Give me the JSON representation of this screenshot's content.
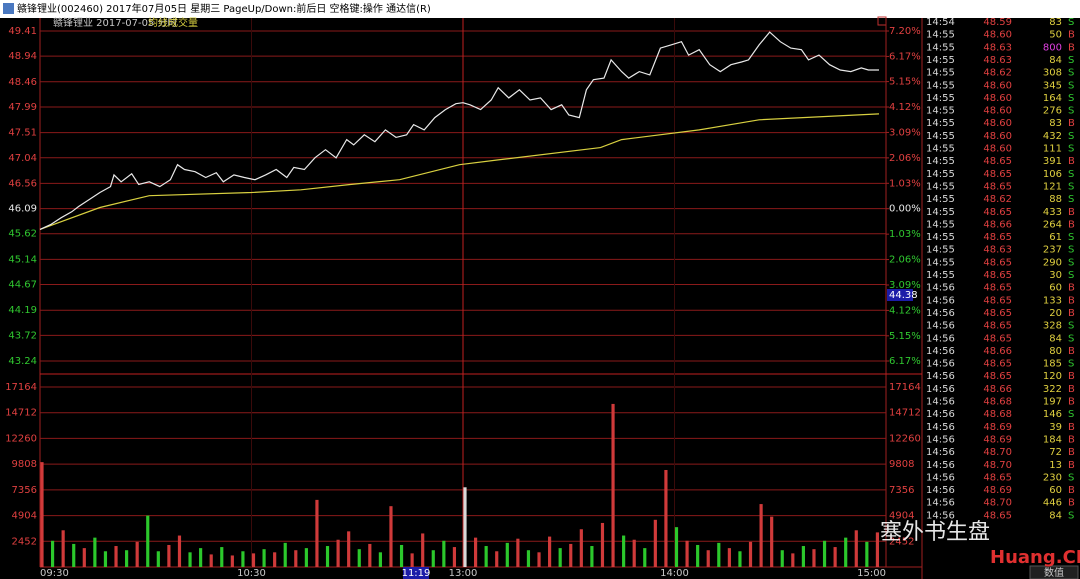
{
  "window_title": "赣锋锂业(002460) 2017年07月05日 星期三 PageUp/Down:前后日 空格键:操作 通达信(R)",
  "chart_data": {
    "type": "intraday",
    "title": "赣锋锂业 2017-07-05 分时",
    "xlim": [
      0,
      240
    ],
    "xticks": [
      {
        "value": 0,
        "label": "09:30"
      },
      {
        "value": 60,
        "label": "10:30"
      },
      {
        "value": 120,
        "label": "13:00"
      },
      {
        "value": 180,
        "label": "14:00"
      },
      {
        "value": 240,
        "label": "15:00"
      }
    ],
    "ylim": [
      43.24,
      49.41
    ],
    "yticks": [
      49.41,
      48.94,
      48.46,
      47.99,
      47.51,
      47.04,
      46.56,
      46.09,
      45.62,
      45.14,
      44.67,
      44.19,
      43.72,
      43.24
    ],
    "y2lim": [
      -6.17,
      7.2
    ],
    "y2ticks": [
      {
        "value": 7.2,
        "label": "7.20%"
      },
      {
        "value": 6.17,
        "label": "6.17%"
      },
      {
        "value": 5.15,
        "label": "5.15%"
      },
      {
        "value": 4.12,
        "label": "4.12%"
      },
      {
        "value": 3.09,
        "label": "3.09%"
      },
      {
        "value": 2.06,
        "label": "2.06%"
      },
      {
        "value": 1.03,
        "label": "1.03%"
      },
      {
        "value": 0,
        "label": "0.00%"
      },
      {
        "value": -1.03,
        "label": "1.03%"
      },
      {
        "value": -2.06,
        "label": "2.06%"
      },
      {
        "value": -3.09,
        "label": "3.09%"
      },
      {
        "value": -4.12,
        "label": "4.12%"
      },
      {
        "value": -5.15,
        "label": "5.15%"
      },
      {
        "value": -6.17,
        "label": "6.17%"
      }
    ],
    "grid": true,
    "price": {
      "color": "#e8e8e8",
      "x": [
        0,
        3,
        6,
        9,
        11,
        14,
        17,
        20,
        21,
        23,
        26,
        28,
        31,
        34,
        37,
        39,
        41,
        44,
        47,
        50,
        52,
        55,
        58,
        61,
        64,
        67,
        70,
        72,
        75,
        78,
        81,
        84,
        87,
        89,
        92,
        95,
        98,
        101,
        104,
        106,
        109,
        112,
        115,
        118,
        120,
        122,
        125,
        128,
        130,
        133,
        136,
        139,
        142,
        145,
        148,
        150,
        153,
        155,
        157,
        160,
        162,
        165,
        167,
        170,
        173,
        176,
        179,
        182,
        184,
        187,
        190,
        193,
        196,
        199,
        201,
        204,
        207,
        210,
        213,
        216,
        218,
        221,
        224,
        227,
        230,
        233,
        235,
        238
      ],
      "values": [
        45.7,
        45.79,
        45.92,
        46.03,
        46.13,
        46.26,
        46.39,
        46.5,
        46.72,
        46.59,
        46.74,
        46.54,
        46.59,
        46.5,
        46.63,
        46.91,
        46.82,
        46.78,
        46.67,
        46.76,
        46.59,
        46.72,
        46.67,
        46.63,
        46.72,
        46.82,
        46.67,
        46.86,
        46.82,
        47.04,
        47.19,
        47.04,
        47.38,
        47.28,
        47.47,
        47.34,
        47.56,
        47.42,
        47.47,
        47.66,
        47.56,
        47.79,
        47.94,
        48.05,
        48.07,
        48.03,
        47.94,
        48.12,
        48.35,
        48.16,
        48.31,
        48.12,
        48.16,
        47.94,
        48.03,
        47.84,
        47.79,
        48.31,
        48.5,
        48.53,
        48.87,
        48.65,
        48.53,
        48.65,
        48.59,
        49.09,
        49.15,
        49.21,
        48.96,
        49.06,
        48.78,
        48.65,
        48.78,
        48.83,
        48.87,
        49.15,
        49.39,
        49.21,
        49.09,
        49.06,
        48.87,
        48.96,
        48.78,
        48.68,
        48.65,
        48.72,
        48.68,
        48.68
      ]
    },
    "average": {
      "name": "均线",
      "color": "#d8d040",
      "x": [
        0,
        17,
        31,
        60,
        74,
        88,
        102,
        119,
        130,
        159,
        165,
        187,
        204,
        238
      ],
      "values": [
        45.7,
        46.11,
        46.33,
        46.39,
        46.44,
        46.54,
        46.63,
        46.91,
        47.0,
        47.23,
        47.38,
        47.56,
        47.75,
        47.86
      ]
    },
    "volume": {
      "name": "成交量",
      "ylim": [
        0,
        17164
      ],
      "yticks": [
        17164,
        14712,
        12260,
        9808,
        7356,
        4904,
        2452
      ],
      "x": [
        0,
        3,
        6,
        9,
        12,
        15,
        18,
        21,
        24,
        27,
        30,
        33,
        36,
        39,
        42,
        45,
        48,
        51,
        54,
        57,
        60,
        63,
        66,
        69,
        72,
        75,
        78,
        81,
        84,
        87,
        90,
        93,
        96,
        99,
        102,
        105,
        108,
        111,
        114,
        117,
        120,
        123,
        126,
        129,
        132,
        135,
        138,
        141,
        144,
        147,
        150,
        153,
        156,
        159,
        162,
        165,
        168,
        171,
        174,
        177,
        180,
        183,
        186,
        189,
        192,
        195,
        198,
        201,
        204,
        207,
        210,
        213,
        216,
        219,
        222,
        225,
        228,
        231,
        234,
        237
      ],
      "values": [
        10000,
        2500,
        3500,
        2200,
        1800,
        2800,
        1500,
        2000,
        1600,
        2400,
        4900,
        1500,
        2100,
        3000,
        1400,
        1800,
        1200,
        1900,
        1100,
        1500,
        1300,
        1700,
        1400,
        2300,
        1600,
        1800,
        6400,
        2000,
        2600,
        3400,
        1700,
        2200,
        1400,
        5800,
        2100,
        1300,
        3200,
        1600,
        2500,
        1900,
        7600,
        2800,
        2000,
        1500,
        2300,
        2700,
        1600,
        1400,
        2900,
        1800,
        2200,
        3600,
        2000,
        4200,
        15550,
        3000,
        2600,
        1800,
        4500,
        9250,
        3800,
        2500,
        2100,
        1600,
        2300,
        1800,
        1500,
        2400,
        6000,
        4800,
        1600,
        1300,
        2000,
        1700,
        2500,
        1900,
        2800,
        3500,
        2400,
        3300
      ],
      "colors": [
        "#d03a3a",
        "#2cc82c",
        "#d03a3a",
        "#2cc82c",
        "#d03a3a",
        "#2cc82c",
        "#2cc82c",
        "#d03a3a",
        "#2cc82c",
        "#d03a3a",
        "#2cc82c",
        "#2cc82c",
        "#d03a3a",
        "#d03a3a",
        "#2cc82c",
        "#2cc82c",
        "#d03a3a",
        "#2cc82c",
        "#d03a3a",
        "#2cc82c",
        "#d03a3a",
        "#2cc82c",
        "#d03a3a",
        "#2cc82c",
        "#d03a3a",
        "#2cc82c",
        "#d03a3a",
        "#2cc82c",
        "#d03a3a",
        "#d03a3a",
        "#2cc82c",
        "#d03a3a",
        "#2cc82c",
        "#d03a3a",
        "#2cc82c",
        "#d03a3a",
        "#d03a3a",
        "#2cc82c",
        "#2cc82c",
        "#d03a3a",
        "#d8d8d8",
        "#d03a3a",
        "#2cc82c",
        "#d03a3a",
        "#2cc82c",
        "#d03a3a",
        "#2cc82c",
        "#d03a3a",
        "#d03a3a",
        "#2cc82c",
        "#d03a3a",
        "#d03a3a",
        "#2cc82c",
        "#d03a3a",
        "#d03a3a",
        "#2cc82c",
        "#d03a3a",
        "#2cc82c",
        "#d03a3a",
        "#d03a3a",
        "#2cc82c",
        "#d03a3a",
        "#2cc82c",
        "#d03a3a",
        "#2cc82c",
        "#d03a3a",
        "#2cc82c",
        "#d03a3a",
        "#d03a3a",
        "#d03a3a",
        "#2cc82c",
        "#d03a3a",
        "#2cc82c",
        "#d03a3a",
        "#2cc82c",
        "#d03a3a",
        "#2cc82c",
        "#d03a3a",
        "#2cc82c",
        "#d03a3a"
      ]
    },
    "crosshair": {
      "x_label": "11:19",
      "y_label": "44.38"
    }
  },
  "ticks_table": {
    "rows": [
      [
        "14:54",
        "48.59",
        "83",
        "S"
      ],
      [
        "14:55",
        "48.60",
        "50",
        "B"
      ],
      [
        "14:55",
        "48.63",
        "800",
        "B"
      ],
      [
        "14:55",
        "48.63",
        "84",
        "S"
      ],
      [
        "14:55",
        "48.62",
        "308",
        "S"
      ],
      [
        "14:55",
        "48.60",
        "345",
        "S"
      ],
      [
        "14:55",
        "48.60",
        "164",
        "S"
      ],
      [
        "14:55",
        "48.60",
        "276",
        "S"
      ],
      [
        "14:55",
        "48.60",
        "83",
        "B"
      ],
      [
        "14:55",
        "48.60",
        "432",
        "S"
      ],
      [
        "14:55",
        "48.60",
        "111",
        "S"
      ],
      [
        "14:55",
        "48.65",
        "391",
        "B"
      ],
      [
        "14:55",
        "48.65",
        "106",
        "S"
      ],
      [
        "14:55",
        "48.65",
        "121",
        "S"
      ],
      [
        "14:55",
        "48.62",
        "88",
        "S"
      ],
      [
        "14:55",
        "48.65",
        "433",
        "B"
      ],
      [
        "14:55",
        "48.66",
        "264",
        "B"
      ],
      [
        "14:55",
        "48.65",
        "61",
        "S"
      ],
      [
        "14:55",
        "48.63",
        "237",
        "S"
      ],
      [
        "14:55",
        "48.65",
        "290",
        "S"
      ],
      [
        "14:55",
        "48.65",
        "30",
        "S"
      ],
      [
        "14:56",
        "48.65",
        "60",
        "B"
      ],
      [
        "14:56",
        "48.65",
        "133",
        "B"
      ],
      [
        "14:56",
        "48.65",
        "20",
        "B"
      ],
      [
        "14:56",
        "48.65",
        "328",
        "S"
      ],
      [
        "14:56",
        "48.65",
        "84",
        "S"
      ],
      [
        "14:56",
        "48.66",
        "80",
        "B"
      ],
      [
        "14:56",
        "48.65",
        "185",
        "S"
      ],
      [
        "14:56",
        "48.65",
        "120",
        "B"
      ],
      [
        "14:56",
        "48.66",
        "322",
        "B"
      ],
      [
        "14:56",
        "48.68",
        "197",
        "B"
      ],
      [
        "14:56",
        "48.68",
        "146",
        "S"
      ],
      [
        "14:56",
        "48.69",
        "39",
        "B"
      ],
      [
        "14:56",
        "48.69",
        "184",
        "B"
      ],
      [
        "14:56",
        "48.70",
        "72",
        "B"
      ],
      [
        "14:56",
        "48.70",
        "13",
        "B"
      ],
      [
        "14:56",
        "48.65",
        "230",
        "S"
      ],
      [
        "14:56",
        "48.69",
        "60",
        "B"
      ],
      [
        "14:56",
        "48.70",
        "446",
        "B"
      ],
      [
        "14:56",
        "48.65",
        "84",
        "S"
      ]
    ]
  },
  "watermark": [
    "塞外书生盘",
    "Huang.CN"
  ],
  "status_tab": "数值"
}
